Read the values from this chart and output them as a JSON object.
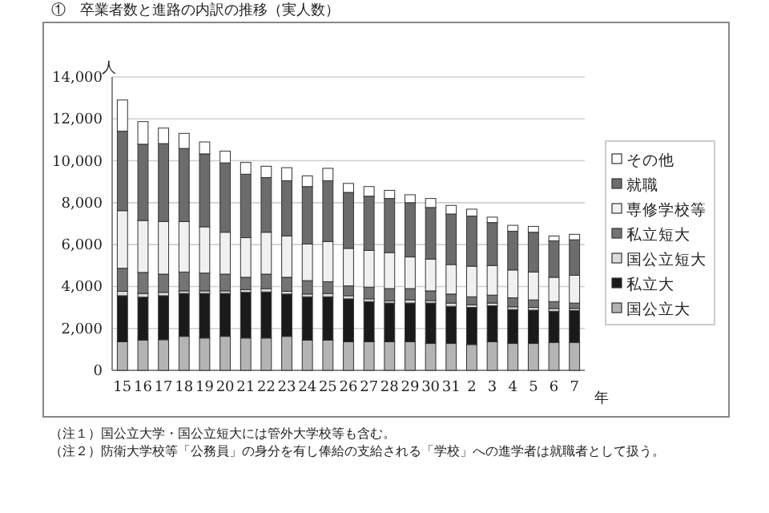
{
  "chart_data": {
    "type": "bar",
    "stacked": true,
    "title": "①　卒業者数と進路の内訳の推移（実人数）",
    "ylabel": "人",
    "xlabel": "年",
    "categories": [
      "15",
      "16",
      "17",
      "18",
      "19",
      "20",
      "21",
      "22",
      "23",
      "24",
      "25",
      "26",
      "27",
      "28",
      "29",
      "30",
      "31",
      "2",
      "3",
      "4",
      "5",
      "6",
      "7"
    ],
    "series": [
      {
        "name": "国公立大",
        "color": "#b4b4b4",
        "values": [
          1360,
          1440,
          1460,
          1620,
          1540,
          1620,
          1540,
          1540,
          1620,
          1440,
          1440,
          1360,
          1360,
          1360,
          1360,
          1280,
          1280,
          1230,
          1360,
          1280,
          1280,
          1330,
          1330
        ]
      },
      {
        "name": "私立大",
        "color": "#1a1a1a",
        "values": [
          2200,
          2050,
          2100,
          2050,
          2130,
          2050,
          2180,
          2200,
          2020,
          2070,
          2070,
          2050,
          1920,
          1850,
          1850,
          1930,
          1770,
          1770,
          1720,
          1620,
          1590,
          1490,
          1520
        ]
      },
      {
        "name": "国公立短大",
        "color": "#dcdcdc",
        "values": [
          210,
          180,
          160,
          120,
          120,
          120,
          130,
          160,
          130,
          130,
          160,
          150,
          130,
          100,
          150,
          120,
          160,
          130,
          130,
          130,
          130,
          130,
          100
        ]
      },
      {
        "name": "私立短大",
        "color": "#747474",
        "values": [
          1100,
          1000,
          870,
          900,
          850,
          800,
          590,
          690,
          670,
          640,
          560,
          470,
          560,
          590,
          540,
          460,
          430,
          380,
          380,
          430,
          360,
          330,
          260
        ]
      },
      {
        "name": "専修学校等",
        "color": "#f0f0f0",
        "values": [
          2750,
          2480,
          2510,
          2410,
          2210,
          2000,
          1890,
          2000,
          1970,
          1750,
          1920,
          1790,
          1750,
          1720,
          1510,
          1520,
          1410,
          1460,
          1410,
          1330,
          1330,
          1160,
          1330
        ]
      },
      {
        "name": "就職",
        "color": "#6c6c6c",
        "values": [
          3790,
          3640,
          3720,
          3490,
          3480,
          3310,
          3030,
          2610,
          2640,
          2740,
          2900,
          2670,
          2590,
          2580,
          2590,
          2460,
          2410,
          2390,
          2050,
          1850,
          1900,
          1740,
          1690
        ]
      },
      {
        "name": "その他",
        "color": "#ffffff",
        "values": [
          1490,
          1080,
          740,
          720,
          570,
          560,
          560,
          540,
          620,
          510,
          590,
          430,
          460,
          390,
          380,
          430,
          410,
          330,
          260,
          280,
          280,
          230,
          260
        ]
      }
    ],
    "ylim": [
      0,
      14000
    ],
    "yticks": [
      0,
      {
        "value": 2000,
        "label": "2,000"
      },
      {
        "value": 4000,
        "label": "4,000"
      },
      {
        "value": 6000,
        "label": "6,000"
      },
      {
        "value": 8000,
        "label": "8,000"
      },
      {
        "value": 10000,
        "label": "10,000"
      },
      {
        "value": 12000,
        "label": "12,000"
      },
      {
        "value": 14000,
        "label": "14,000"
      }
    ],
    "grid": "y",
    "legend": "right",
    "annotations": [
      "（注１）国公立大学・国公立短大には管外大学校等も含む。",
      "（注２）防衛大学校等「公務員」の身分を有し俸給の支給される「学校」への進学者は就職者として扱う。"
    ]
  }
}
